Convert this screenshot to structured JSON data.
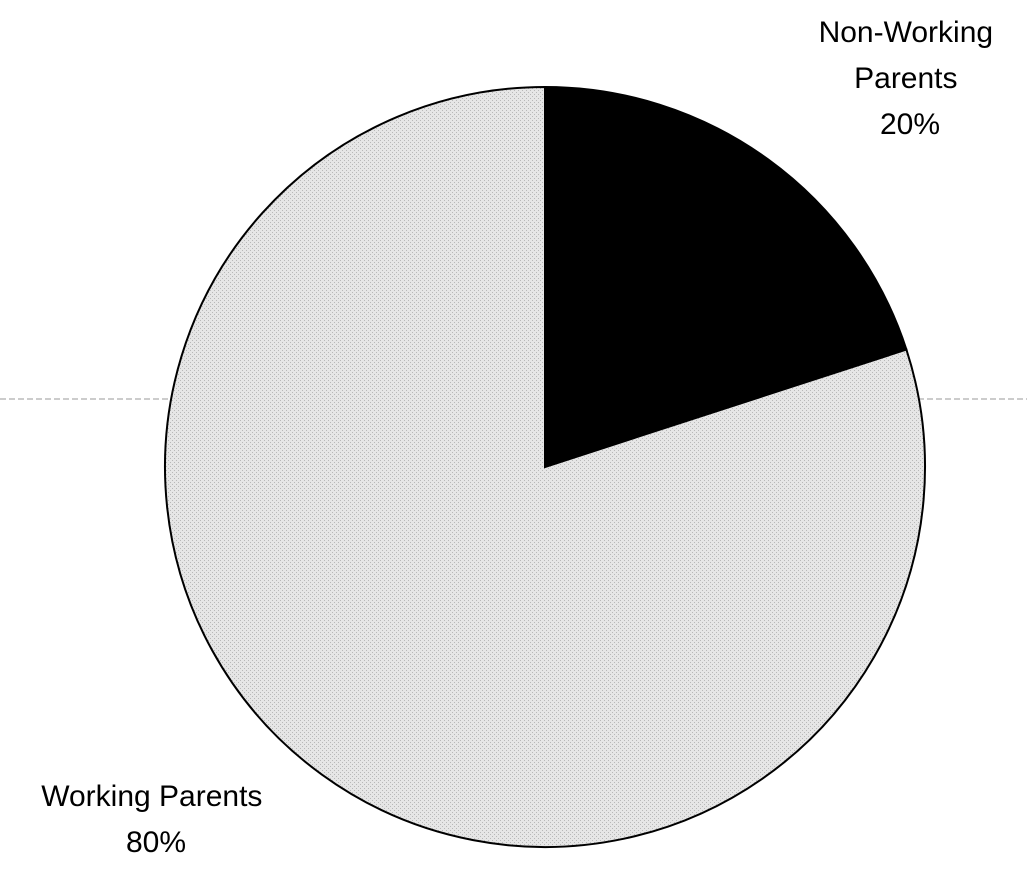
{
  "chart_data": {
    "type": "pie",
    "title": "",
    "start_angle_deg": 0,
    "direction": "clockwise",
    "slices": [
      {
        "label_lines": [
          "Non-Working",
          "Parents"
        ],
        "percent_label": "20%",
        "value": 20,
        "color": "#000000"
      },
      {
        "label_lines": [
          "Working Parents"
        ],
        "percent_label": "80%",
        "value": 80,
        "color": "#e3e3e3"
      }
    ],
    "legend": "none"
  },
  "colors": {
    "outline": "#000000",
    "background": "#ffffff"
  }
}
